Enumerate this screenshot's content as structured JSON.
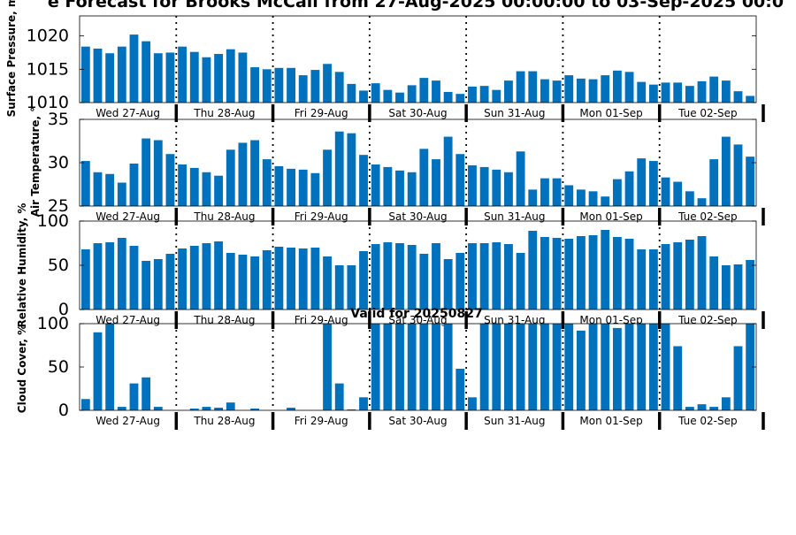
{
  "figure": {
    "title": "e Forecast for Brooks McCall from 27-Aug-2025 00:00:00 to 03-Sep-2025 00:0",
    "valid_note": "Valid for 20250827",
    "day_labels": [
      "Wed 27-Aug",
      "Thu 28-Aug",
      "Fri 29-Aug",
      "Sat 30-Aug",
      "Sun 31-Aug",
      "Mon 01-Sep",
      "Tue 02-Sep"
    ],
    "bar_color": "#0072bd"
  },
  "chart_data": [
    {
      "type": "bar",
      "ylabel": "Surface Pressure, m",
      "ylim": [
        1010,
        1023
      ],
      "yticks": [
        1010,
        1015,
        1020
      ],
      "values": [
        1018.4,
        1018.1,
        1017.4,
        1018.4,
        1020.2,
        1019.2,
        1017.4,
        1017.5,
        1018.4,
        1017.6,
        1016.8,
        1017.3,
        1018.0,
        1017.5,
        1015.3,
        1015.0,
        1015.2,
        1015.2,
        1014.1,
        1014.9,
        1015.8,
        1014.6,
        1012.8,
        1011.8,
        1012.9,
        1011.9,
        1011.5,
        1012.6,
        1013.7,
        1013.3,
        1011.6,
        1011.3,
        1012.4,
        1012.5,
        1011.9,
        1013.3,
        1014.7,
        1014.7,
        1013.5,
        1013.3,
        1014.1,
        1013.6,
        1013.5,
        1014.1,
        1014.8,
        1014.6,
        1013.1,
        1012.7,
        1013.0,
        1013.0,
        1012.5,
        1013.2,
        1013.9,
        1013.3,
        1011.7,
        1011.0
      ]
    },
    {
      "type": "bar",
      "ylabel": "Air Temperature, °",
      "ylim": [
        25,
        35
      ],
      "yticks": [
        25,
        30,
        35
      ],
      "values": [
        30.2,
        28.9,
        28.7,
        27.7,
        29.9,
        32.8,
        32.6,
        31.0,
        29.8,
        29.4,
        28.9,
        28.5,
        31.5,
        32.3,
        32.6,
        30.4,
        29.6,
        29.3,
        29.2,
        28.8,
        31.5,
        33.6,
        33.4,
        30.9,
        29.8,
        29.5,
        29.1,
        28.9,
        31.6,
        30.4,
        33.0,
        31.0,
        29.7,
        29.5,
        29.2,
        28.9,
        31.3,
        26.9,
        28.2,
        28.2,
        27.4,
        26.9,
        26.7,
        26.1,
        28.1,
        29.0,
        30.5,
        30.2,
        28.3,
        27.8,
        26.7,
        25.9,
        30.4,
        33.0,
        32.1,
        30.7
      ]
    },
    {
      "type": "bar",
      "ylabel": "Relative Humidity, %",
      "ylim": [
        0,
        100
      ],
      "yticks": [
        0,
        50,
        100
      ],
      "values": [
        68,
        75,
        76,
        81,
        72,
        55,
        57,
        63,
        69,
        72,
        75,
        77,
        64,
        62,
        60,
        67,
        71,
        70,
        69,
        70,
        60,
        50,
        50,
        66,
        74,
        76,
        75,
        73,
        63,
        75,
        57,
        64,
        75,
        75,
        76,
        74,
        64,
        89,
        82,
        81,
        80,
        83,
        84,
        90,
        82,
        80,
        68,
        68,
        74,
        76,
        79,
        83,
        60,
        50,
        51,
        56
      ]
    },
    {
      "type": "bar",
      "ylabel": "Cloud Cover, %",
      "ylim": [
        0,
        100
      ],
      "yticks": [
        0,
        50,
        100
      ],
      "values": [
        13,
        90,
        100,
        4,
        31,
        38,
        4,
        0,
        0,
        2,
        4,
        3,
        9,
        0,
        2,
        0,
        0,
        3,
        0,
        0,
        100,
        31,
        1,
        15,
        100,
        100,
        100,
        100,
        100,
        100,
        100,
        48,
        15,
        100,
        100,
        100,
        100,
        100,
        100,
        100,
        100,
        92,
        100,
        100,
        95,
        100,
        100,
        100,
        100,
        74,
        4,
        7,
        4,
        15,
        74,
        100
      ]
    }
  ]
}
